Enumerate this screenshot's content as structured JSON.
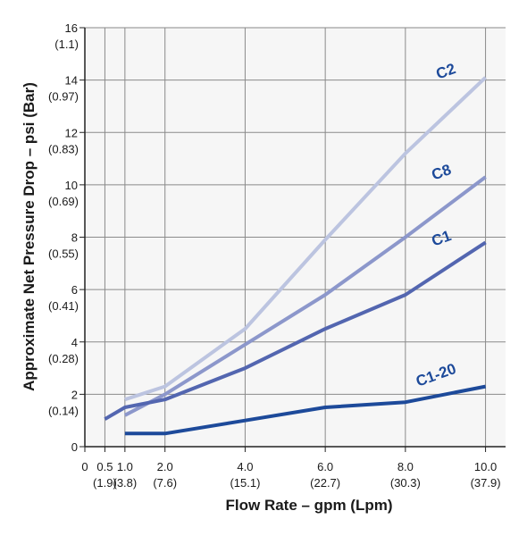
{
  "chart_data": {
    "type": "line",
    "xlabel": "Flow Rate – gpm (Lpm)",
    "ylabel": "Approximate Net Pressure Drop – psi (Bar)",
    "xlim": [
      0,
      10.5
    ],
    "ylim": [
      0,
      16
    ],
    "grid": true,
    "x_ticks": [
      {
        "value": 0,
        "label": "0",
        "sub": ""
      },
      {
        "value": 0.5,
        "label": "0.5",
        "sub": "(1.9)"
      },
      {
        "value": 1.0,
        "label": "1.0",
        "sub": "(3.8)"
      },
      {
        "value": 2.0,
        "label": "2.0",
        "sub": "(7.6)"
      },
      {
        "value": 4.0,
        "label": "4.0",
        "sub": "(15.1)"
      },
      {
        "value": 6.0,
        "label": "6.0",
        "sub": "(22.7)"
      },
      {
        "value": 8.0,
        "label": "8.0",
        "sub": "(30.3)"
      },
      {
        "value": 10.0,
        "label": "10.0",
        "sub": "(37.9)"
      }
    ],
    "y_ticks": [
      {
        "value": 0,
        "label": "0",
        "sub": ""
      },
      {
        "value": 2,
        "label": "2",
        "sub": "(0.14)"
      },
      {
        "value": 4,
        "label": "4",
        "sub": "(0.28)"
      },
      {
        "value": 6,
        "label": "6",
        "sub": "(0.41)"
      },
      {
        "value": 8,
        "label": "8",
        "sub": "(0.55)"
      },
      {
        "value": 10,
        "label": "10",
        "sub": "(0.69)"
      },
      {
        "value": 12,
        "label": "12",
        "sub": "(0.83)"
      },
      {
        "value": 14,
        "label": "14",
        "sub": "(0.97)"
      },
      {
        "value": 16,
        "label": "16",
        "sub": "(1.1)"
      }
    ],
    "series": [
      {
        "name": "C2",
        "color": "#bcc4e0",
        "points": [
          [
            1.0,
            1.8
          ],
          [
            2.0,
            2.3
          ],
          [
            4.0,
            4.5
          ],
          [
            6.0,
            7.9
          ],
          [
            8.0,
            11.2
          ],
          [
            10.0,
            14.1
          ]
        ]
      },
      {
        "name": "C8",
        "color": "#8c97cb",
        "points": [
          [
            1.0,
            1.2
          ],
          [
            2.0,
            2.0
          ],
          [
            4.0,
            3.9
          ],
          [
            6.0,
            5.8
          ],
          [
            8.0,
            8.0
          ],
          [
            10.0,
            10.3
          ]
        ]
      },
      {
        "name": "C1",
        "color": "#5366b0",
        "points": [
          [
            0.5,
            1.05
          ],
          [
            1.0,
            1.5
          ],
          [
            2.0,
            1.8
          ],
          [
            4.0,
            3.0
          ],
          [
            6.0,
            4.5
          ],
          [
            8.0,
            5.8
          ],
          [
            10.0,
            7.8
          ]
        ]
      },
      {
        "name": "C1-20",
        "color": "#1d4a9a",
        "points": [
          [
            1.0,
            0.5
          ],
          [
            2.0,
            0.5
          ],
          [
            4.0,
            1.0
          ],
          [
            6.0,
            1.5
          ],
          [
            8.0,
            1.7
          ],
          [
            10.0,
            2.3
          ]
        ]
      }
    ]
  }
}
